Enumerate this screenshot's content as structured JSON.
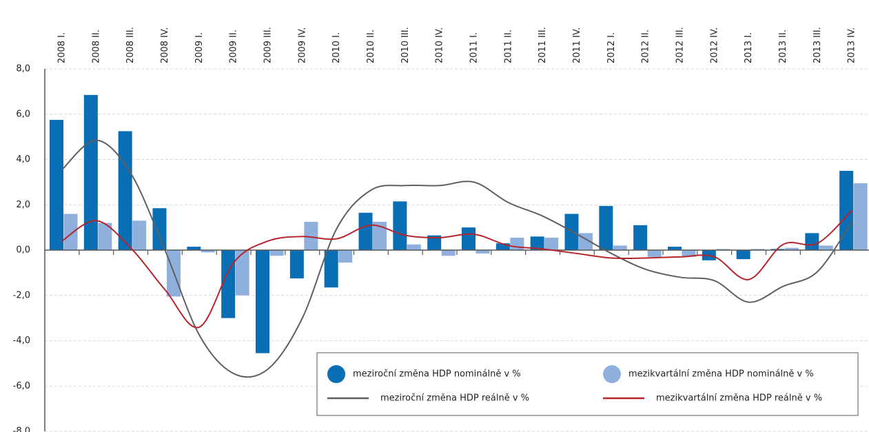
{
  "chart_data": {
    "type": "bar_line",
    "categories": [
      "2008 I.",
      "2008 II.",
      "2008 III.",
      "2008 IV.",
      "2009 I.",
      "2009 II.",
      "2009 III.",
      "2009 IV.",
      "2010 I.",
      "2010 II.",
      "2010 III.",
      "2010 IV.",
      "2011 I.",
      "2011 II.",
      "2011 III.",
      "2011 IV.",
      "2012 I.",
      "2012 II.",
      "2012 III.",
      "2012 IV.",
      "2013 I.",
      "2013 II.",
      "2013 III.",
      "2013 IV."
    ],
    "series": [
      {
        "name": "meziroční změna HDP nominálně v %",
        "kind": "bar",
        "color": "#0a6eb4",
        "values": [
          5.75,
          6.85,
          5.25,
          1.85,
          0.15,
          -3.0,
          -4.55,
          -1.25,
          -1.65,
          1.65,
          2.15,
          0.65,
          1.0,
          0.3,
          0.6,
          1.6,
          1.95,
          1.1,
          0.15,
          -0.45,
          -0.4,
          0.05,
          0.75,
          3.5
        ]
      },
      {
        "name": "mezikvartální změna HDP nominálně  v %",
        "kind": "bar",
        "color": "#8fb0dd",
        "values": [
          1.6,
          1.2,
          1.3,
          -2.05,
          -0.1,
          -2.0,
          -0.25,
          1.25,
          -0.55,
          1.25,
          0.25,
          -0.25,
          -0.15,
          0.55,
          0.55,
          0.75,
          0.2,
          -0.3,
          -0.3,
          0.05,
          0.05,
          0.1,
          0.2,
          2.95
        ]
      },
      {
        "name": "meziroční změna HDP reálně v %",
        "kind": "line",
        "color": "#5f5f5f",
        "values": [
          3.55,
          4.85,
          3.4,
          0.0,
          -3.75,
          -5.45,
          -5.25,
          -3.0,
          0.95,
          2.65,
          2.85,
          2.85,
          3.0,
          2.1,
          1.5,
          0.7,
          -0.15,
          -0.85,
          -1.2,
          -1.35,
          -2.3,
          -1.6,
          -0.95,
          1.25
        ]
      },
      {
        "name": "mezikvartální změna HDP reálně  v %",
        "kind": "line",
        "color": "#b5252b",
        "values": [
          0.4,
          1.3,
          0.1,
          -1.75,
          -3.4,
          -0.55,
          0.4,
          0.6,
          0.5,
          1.1,
          0.65,
          0.55,
          0.7,
          0.2,
          0.05,
          -0.15,
          -0.35,
          -0.35,
          -0.3,
          -0.3,
          -1.3,
          0.25,
          0.3,
          1.75
        ]
      }
    ],
    "ylim": [
      -8,
      8
    ],
    "yticks": [
      {
        "value": 8,
        "label": "8,0"
      },
      {
        "value": 6,
        "label": "6,0"
      },
      {
        "value": 4,
        "label": "4,0"
      },
      {
        "value": 2,
        "label": "2,0"
      },
      {
        "value": 0,
        "label": "0,0"
      },
      {
        "value": -2,
        "label": "-2,0"
      },
      {
        "value": -4,
        "label": "-4,0"
      },
      {
        "value": -6,
        "label": "-6,0"
      },
      {
        "value": -8,
        "label": "-8,0"
      }
    ],
    "grid": true
  }
}
